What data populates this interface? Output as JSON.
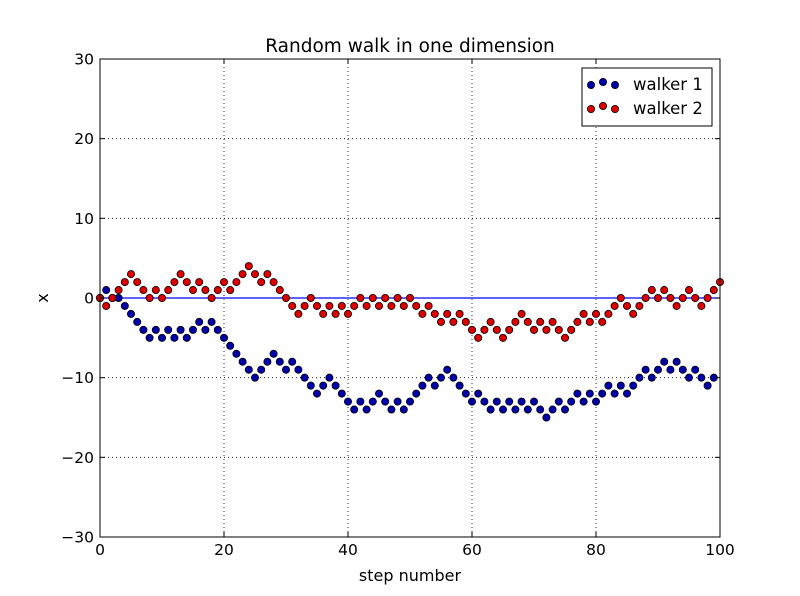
{
  "chart_data": {
    "type": "scatter",
    "title": "Random walk in one dimension",
    "xlabel": "step number",
    "ylabel": "x",
    "xlim": [
      0,
      100
    ],
    "ylim": [
      -30,
      30
    ],
    "xticks": [
      0,
      20,
      40,
      60,
      80,
      100
    ],
    "yticks": [
      -30,
      -20,
      -10,
      0,
      10,
      20,
      30
    ],
    "ytick_labels": [
      "−30",
      "−20",
      "−10",
      "0",
      "10",
      "20",
      "30"
    ],
    "grid": true,
    "legend_position": "top-right",
    "reference_line": {
      "y": 0,
      "color": "#0000ff"
    },
    "series": [
      {
        "name": "walker 1",
        "color": "#0000aa",
        "values": [
          0,
          1,
          0,
          0,
          -1,
          -2,
          -3,
          -4,
          -5,
          -4,
          -5,
          -4,
          -5,
          -4,
          -5,
          -4,
          -3,
          -4,
          -3,
          -4,
          -5,
          -6,
          -7,
          -8,
          -9,
          -10,
          -9,
          -8,
          -7,
          -8,
          -9,
          -8,
          -9,
          -10,
          -11,
          -12,
          -11,
          -10,
          -11,
          -12,
          -13,
          -14,
          -13,
          -14,
          -13,
          -12,
          -13,
          -14,
          -13,
          -14,
          -13,
          -12,
          -11,
          -10,
          -11,
          -10,
          -9,
          -10,
          -11,
          -12,
          -13,
          -12,
          -13,
          -14,
          -13,
          -14,
          -13,
          -14,
          -13,
          -14,
          -13,
          -14,
          -15,
          -14,
          -13,
          -14,
          -13,
          -12,
          -13,
          -12,
          -13,
          -12,
          -11,
          -12,
          -11,
          -12,
          -11,
          -10,
          -9,
          -10,
          -9,
          -8,
          -9,
          -8,
          -9,
          -10,
          -9,
          -10,
          -11,
          -10
        ]
      },
      {
        "name": "walker 2",
        "color": "#dd0000",
        "values": [
          0,
          -1,
          0,
          1,
          2,
          3,
          2,
          1,
          0,
          1,
          0,
          1,
          2,
          3,
          2,
          1,
          2,
          1,
          0,
          1,
          2,
          1,
          2,
          3,
          4,
          3,
          2,
          3,
          2,
          1,
          0,
          -1,
          -2,
          -1,
          0,
          -1,
          -2,
          -1,
          -2,
          -1,
          -2,
          -1,
          0,
          -1,
          0,
          -1,
          0,
          -1,
          0,
          -1,
          0,
          -1,
          -2,
          -1,
          -2,
          -3,
          -2,
          -3,
          -2,
          -3,
          -4,
          -5,
          -4,
          -3,
          -4,
          -5,
          -4,
          -3,
          -2,
          -3,
          -4,
          -3,
          -4,
          -3,
          -4,
          -5,
          -4,
          -3,
          -2,
          -3,
          -2,
          -3,
          -2,
          -1,
          0,
          -1,
          -2,
          -1,
          0,
          1,
          0,
          1,
          0,
          -1,
          0,
          1,
          0,
          -1,
          0,
          1,
          2
        ]
      }
    ]
  }
}
